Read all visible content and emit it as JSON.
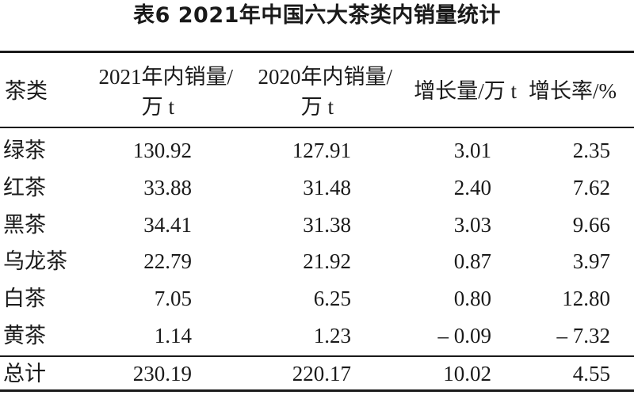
{
  "caption": "表6  2021年中国六大茶类内销量统计",
  "header": {
    "col1": "茶类",
    "col2_line1": "2021年内销量/",
    "col2_line2": "万 t",
    "col3_line1": "2020年内销量/",
    "col3_line2": "万 t",
    "col4": "增长量/万 t",
    "col5": "增长率/%"
  },
  "rows": [
    {
      "name": "绿茶",
      "v2021": "130.92",
      "v2020": "127.91",
      "growth": "3.01",
      "rate": "2.35"
    },
    {
      "name": "红茶",
      "v2021": "33.88",
      "v2020": "31.48",
      "growth": "2.40",
      "rate": "7.62"
    },
    {
      "name": "黑茶",
      "v2021": "34.41",
      "v2020": "31.38",
      "growth": "3.03",
      "rate": "9.66"
    },
    {
      "name": "乌龙茶",
      "v2021": "22.79",
      "v2020": "21.92",
      "growth": "0.87",
      "rate": "3.97"
    },
    {
      "name": "白茶",
      "v2021": "7.05",
      "v2020": "6.25",
      "growth": "0.80",
      "rate": "12.80"
    },
    {
      "name": "黄茶",
      "v2021": "1.14",
      "v2020": "1.23",
      "growth": "– 0.09",
      "rate": "– 7.32"
    }
  ],
  "total": {
    "name": "总计",
    "v2021": "230.19",
    "v2020": "220.17",
    "growth": "10.02",
    "rate": "4.55"
  }
}
